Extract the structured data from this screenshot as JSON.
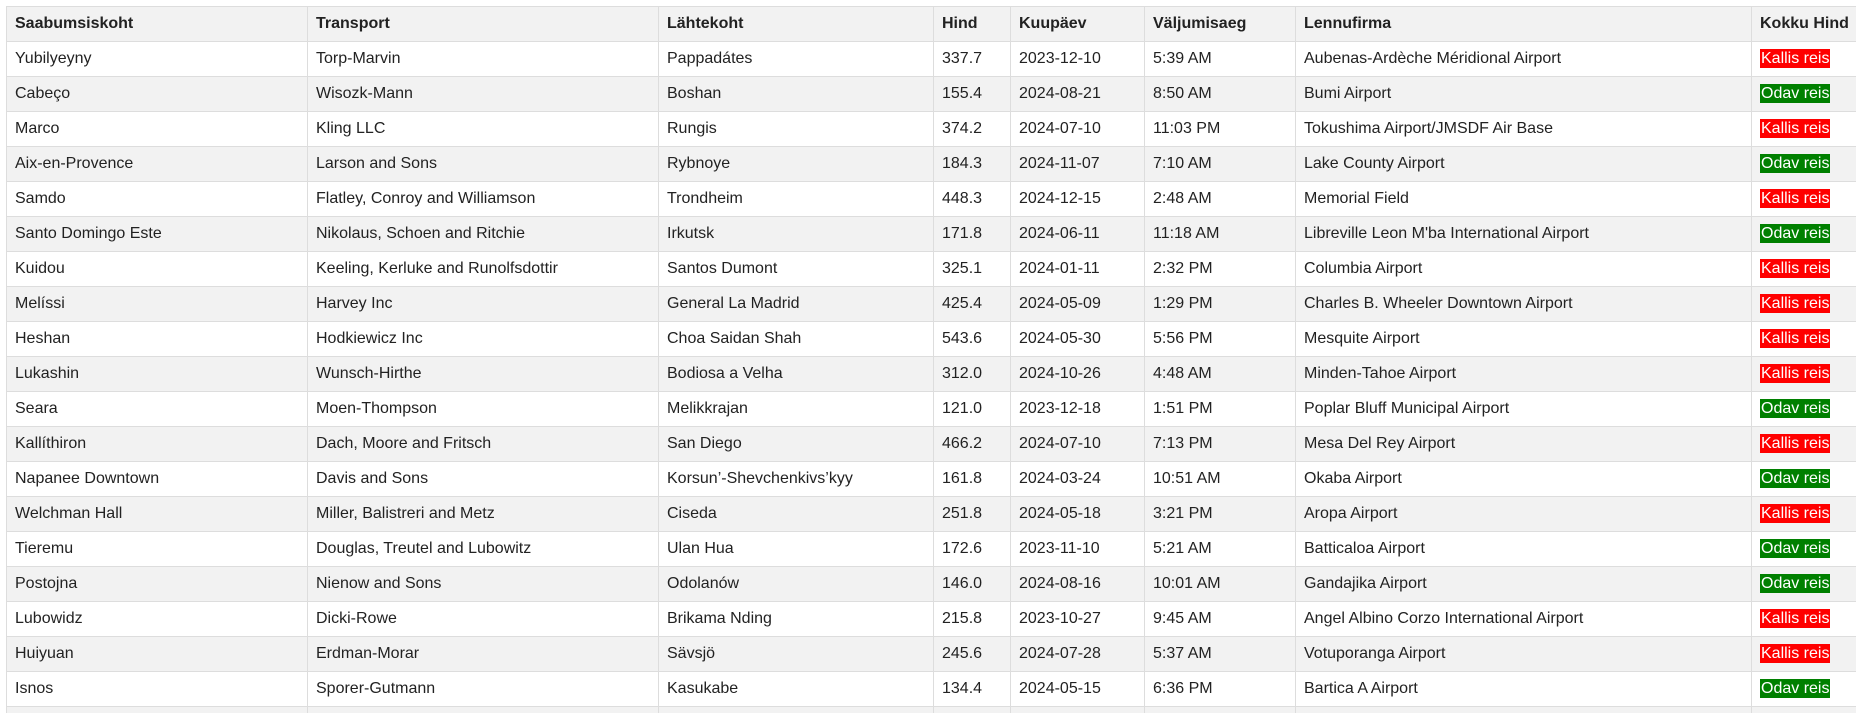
{
  "colors": {
    "expensive": "#ff0000",
    "cheap": "#008000",
    "header_bg": "#f2f2f2",
    "stripe_bg": "#f2f2f2",
    "border": "#dddddd"
  },
  "table": {
    "headers": [
      "Saabumsiskoht",
      "Transport",
      "Lähtekoht",
      "Hind",
      "Kuupäev",
      "Väljumisaeg",
      "Lennufirma",
      "Kokku Hind"
    ],
    "rows": [
      [
        "Yubilyeyny",
        "Torp-Marvin",
        "Pappadátes",
        "337.7",
        "2023-12-10",
        "5:39 AM",
        "Aubenas-Ardèche Méridional Airport",
        "Kallis reis"
      ],
      [
        "Cabeço",
        "Wisozk-Mann",
        "Boshan",
        "155.4",
        "2024-08-21",
        "8:50 AM",
        "Bumi Airport",
        "Odav reis"
      ],
      [
        "Marco",
        "Kling LLC",
        "Rungis",
        "374.2",
        "2024-07-10",
        "11:03 PM",
        "Tokushima Airport/JMSDF Air Base",
        "Kallis reis"
      ],
      [
        "Aix-en-Provence",
        "Larson and Sons",
        "Rybnoye",
        "184.3",
        "2024-11-07",
        "7:10 AM",
        "Lake County Airport",
        "Odav reis"
      ],
      [
        "Samdo",
        "Flatley, Conroy and Williamson",
        "Trondheim",
        "448.3",
        "2024-12-15",
        "2:48 AM",
        "Memorial Field",
        "Kallis reis"
      ],
      [
        "Santo Domingo Este",
        "Nikolaus, Schoen and Ritchie",
        "Irkutsk",
        "171.8",
        "2024-06-11",
        "11:18 AM",
        "Libreville Leon M'ba International Airport",
        "Odav reis"
      ],
      [
        "Kuidou",
        "Keeling, Kerluke and Runolfsdottir",
        "Santos Dumont",
        "325.1",
        "2024-01-11",
        "2:32 PM",
        "Columbia Airport",
        "Kallis reis"
      ],
      [
        "Melíssi",
        "Harvey Inc",
        "General La Madrid",
        "425.4",
        "2024-05-09",
        "1:29 PM",
        "Charles B. Wheeler Downtown Airport",
        "Kallis reis"
      ],
      [
        "Heshan",
        "Hodkiewicz Inc",
        "Choa Saidan Shah",
        "543.6",
        "2024-05-30",
        "5:56 PM",
        "Mesquite Airport",
        "Kallis reis"
      ],
      [
        "Lukashin",
        "Wunsch-Hirthe",
        "Bodiosa a Velha",
        "312.0",
        "2024-10-26",
        "4:48 AM",
        "Minden-Tahoe Airport",
        "Kallis reis"
      ],
      [
        "Seara",
        "Moen-Thompson",
        "Melikkrajan",
        "121.0",
        "2023-12-18",
        "1:51 PM",
        "Poplar Bluff Municipal Airport",
        "Odav reis"
      ],
      [
        "Kallíthiron",
        "Dach, Moore and Fritsch",
        "San Diego",
        "466.2",
        "2024-07-10",
        "7:13 PM",
        "Mesa Del Rey Airport",
        "Kallis reis"
      ],
      [
        "Napanee Downtown",
        "Davis and Sons",
        "Korsun’-Shevchenkivs’kyy",
        "161.8",
        "2024-03-24",
        "10:51 AM",
        "Okaba Airport",
        "Odav reis"
      ],
      [
        "Welchman Hall",
        "Miller, Balistreri and Metz",
        "Ciseda",
        "251.8",
        "2024-05-18",
        "3:21 PM",
        "Aropa Airport",
        "Kallis reis"
      ],
      [
        "Tieremu",
        "Douglas, Treutel and Lubowitz",
        "Ulan Hua",
        "172.6",
        "2023-11-10",
        "5:21 AM",
        "Batticaloa Airport",
        "Odav reis"
      ],
      [
        "Postojna",
        "Nienow and Sons",
        "Odolanów",
        "146.0",
        "2024-08-16",
        "10:01 AM",
        "Gandajika Airport",
        "Odav reis"
      ],
      [
        "Lubowidz",
        "Dicki-Rowe",
        "Brikama Nding",
        "215.8",
        "2023-10-27",
        "9:45 AM",
        "Angel Albino Corzo International Airport",
        "Kallis reis"
      ],
      [
        "Huiyuan",
        "Erdman-Morar",
        "Sävsjö",
        "245.6",
        "2024-07-28",
        "5:37 AM",
        "Votuporanga Airport",
        "Kallis reis"
      ],
      [
        "Isnos",
        "Sporer-Gutmann",
        "Kasukabe",
        "134.4",
        "2024-05-15",
        "6:36 PM",
        "Bartica A Airport",
        "Odav reis"
      ],
      [
        "",
        "",
        "",
        "",
        "",
        "",
        "",
        ""
      ]
    ]
  }
}
